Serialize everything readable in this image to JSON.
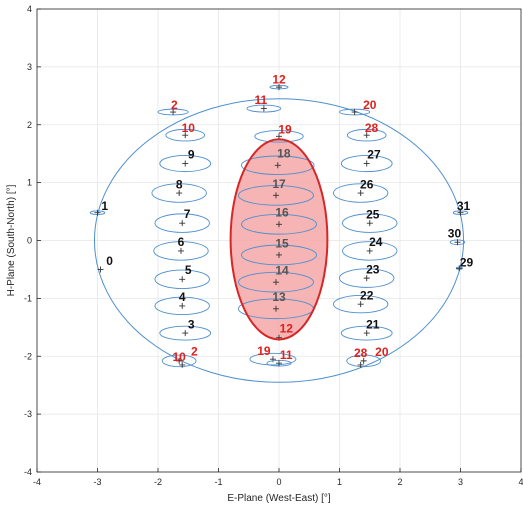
{
  "chart_data": {
    "type": "scatter",
    "xlabel": "E-Plane (West-East) [°]",
    "ylabel": "H-Plane (South-North) [°]",
    "xlim": [
      -4,
      4
    ],
    "ylim": [
      -4,
      4
    ],
    "xticks": [
      "-4",
      "-3",
      "-2",
      "-1",
      "0",
      "1",
      "2",
      "3",
      "4"
    ],
    "yticks": [
      "-4",
      "-3",
      "-2",
      "-1",
      "0",
      "1",
      "2",
      "3",
      "4"
    ],
    "grid": true,
    "colors": {
      "outline": "#4d8fcf",
      "highlight_fill": "#f4a7a7",
      "highlight_stroke": "#d62728",
      "label_black": "#111111",
      "label_red": "#e0201c",
      "label_gray": "#555555",
      "axis": "#262626",
      "grid": "#e6e6e6"
    },
    "coverage_ellipse": {
      "cx": 0,
      "cy": 0,
      "rx": 3.05,
      "ry": 2.45
    },
    "highlight_ellipse": {
      "cx": 0,
      "cy": 0.02,
      "rx": 0.8,
      "ry": 1.73
    },
    "beams": [
      {
        "id": "0",
        "x": -2.95,
        "y": -0.5,
        "rx": 0,
        "ry": 0,
        "color": "black",
        "lx": 0.15,
        "ly": 0.15
      },
      {
        "id": "1",
        "x": -3.0,
        "y": 0.48,
        "rx": 0.12,
        "ry": 0.03,
        "color": "black",
        "lx": 0.12,
        "ly": 0.12
      },
      {
        "id": "2",
        "x": -1.75,
        "y": 2.22,
        "rx": 0.25,
        "ry": 0.05,
        "color": "red",
        "lx": 0.02,
        "ly": 0.12
      },
      {
        "id": "3",
        "x": -1.55,
        "y": -1.6,
        "rx": 0.42,
        "ry": 0.12,
        "color": "black",
        "lx": 0.1,
        "ly": 0.15
      },
      {
        "id": "4",
        "x": -1.6,
        "y": -1.13,
        "rx": 0.45,
        "ry": 0.15,
        "color": "black",
        "lx": 0.0,
        "ly": 0.15
      },
      {
        "id": "5",
        "x": -1.6,
        "y": -0.67,
        "rx": 0.45,
        "ry": 0.16,
        "color": "black",
        "lx": 0.1,
        "ly": 0.16
      },
      {
        "id": "6",
        "x": -1.62,
        "y": -0.18,
        "rx": 0.45,
        "ry": 0.16,
        "color": "black",
        "lx": 0.0,
        "ly": 0.15
      },
      {
        "id": "7",
        "x": -1.6,
        "y": 0.3,
        "rx": 0.45,
        "ry": 0.16,
        "color": "black",
        "lx": 0.08,
        "ly": 0.16
      },
      {
        "id": "8",
        "x": -1.65,
        "y": 0.82,
        "rx": 0.45,
        "ry": 0.16,
        "color": "black",
        "lx": 0.0,
        "ly": 0.15
      },
      {
        "id": "9",
        "x": -1.55,
        "y": 1.33,
        "rx": 0.42,
        "ry": 0.14,
        "color": "black",
        "lx": 0.1,
        "ly": 0.16
      },
      {
        "id": "10",
        "x": -1.55,
        "y": 1.82,
        "rx": 0.32,
        "ry": 0.1,
        "color": "red",
        "lx": 0.05,
        "ly": 0.12
      },
      {
        "id": "11",
        "x": -0.25,
        "y": 2.28,
        "rx": 0.28,
        "ry": 0.06,
        "color": "red",
        "lx": -0.05,
        "ly": 0.15
      },
      {
        "id": "12",
        "x": 0.0,
        "y": 2.65,
        "rx": 0.15,
        "ry": 0.03,
        "color": "red",
        "lx": 0.0,
        "ly": 0.13
      },
      {
        "id": "13",
        "x": -0.05,
        "y": -1.18,
        "rx": 0.62,
        "ry": 0.17,
        "color": "gray",
        "lx": 0.05,
        "ly": 0.2
      },
      {
        "id": "14",
        "x": -0.05,
        "y": -0.72,
        "rx": 0.62,
        "ry": 0.17,
        "color": "gray",
        "lx": 0.1,
        "ly": 0.2
      },
      {
        "id": "15",
        "x": 0.0,
        "y": -0.25,
        "rx": 0.62,
        "ry": 0.17,
        "color": "gray",
        "lx": 0.05,
        "ly": 0.2
      },
      {
        "id": "16",
        "x": 0.0,
        "y": 0.28,
        "rx": 0.62,
        "ry": 0.17,
        "color": "gray",
        "lx": 0.05,
        "ly": 0.2
      },
      {
        "id": "17",
        "x": -0.05,
        "y": 0.78,
        "rx": 0.62,
        "ry": 0.17,
        "color": "gray",
        "lx": 0.05,
        "ly": 0.2
      },
      {
        "id": "18",
        "x": -0.02,
        "y": 1.3,
        "rx": 0.6,
        "ry": 0.16,
        "color": "gray",
        "lx": 0.1,
        "ly": 0.2
      },
      {
        "id": "19",
        "x": 0.0,
        "y": 1.8,
        "rx": 0.4,
        "ry": 0.1,
        "color": "red",
        "lx": 0.1,
        "ly": 0.12
      },
      {
        "id": "20",
        "x": 1.25,
        "y": 2.22,
        "rx": 0.25,
        "ry": 0.05,
        "color": "red",
        "lx": 0.25,
        "ly": 0.12
      },
      {
        "id": "21",
        "x": 1.45,
        "y": -1.6,
        "rx": 0.42,
        "ry": 0.12,
        "color": "black",
        "lx": 0.1,
        "ly": 0.15
      },
      {
        "id": "22",
        "x": 1.35,
        "y": -1.1,
        "rx": 0.45,
        "ry": 0.15,
        "color": "black",
        "lx": 0.1,
        "ly": 0.15
      },
      {
        "id": "23",
        "x": 1.45,
        "y": -0.65,
        "rx": 0.45,
        "ry": 0.16,
        "color": "black",
        "lx": 0.1,
        "ly": 0.15
      },
      {
        "id": "24",
        "x": 1.5,
        "y": -0.18,
        "rx": 0.45,
        "ry": 0.16,
        "color": "black",
        "lx": 0.1,
        "ly": 0.15
      },
      {
        "id": "25",
        "x": 1.5,
        "y": 0.3,
        "rx": 0.45,
        "ry": 0.16,
        "color": "black",
        "lx": 0.05,
        "ly": 0.15
      },
      {
        "id": "26",
        "x": 1.35,
        "y": 0.82,
        "rx": 0.45,
        "ry": 0.16,
        "color": "black",
        "lx": 0.1,
        "ly": 0.15
      },
      {
        "id": "27",
        "x": 1.45,
        "y": 1.33,
        "rx": 0.42,
        "ry": 0.14,
        "color": "black",
        "lx": 0.12,
        "ly": 0.16
      },
      {
        "id": "28",
        "x": 1.45,
        "y": 1.82,
        "rx": 0.32,
        "ry": 0.1,
        "color": "red",
        "lx": 0.08,
        "ly": 0.12
      },
      {
        "id": "29",
        "x": 2.98,
        "y": -0.48,
        "rx": 0.05,
        "ry": 0.02,
        "color": "black",
        "lx": 0.12,
        "ly": 0.1
      },
      {
        "id": "30",
        "x": 2.95,
        "y": -0.03,
        "rx": 0.12,
        "ry": 0.04,
        "color": "black",
        "lx": -0.05,
        "ly": 0.15
      },
      {
        "id": "31",
        "x": 3.0,
        "y": 0.48,
        "rx": 0.12,
        "ry": 0.03,
        "color": "black",
        "lx": 0.05,
        "ly": 0.12
      },
      {
        "id": "2",
        "x": -1.65,
        "y": -2.08,
        "rx": 0.28,
        "ry": 0.1,
        "color": "red",
        "lx": 0.25,
        "ly": 0.16
      },
      {
        "id": "10",
        "x": -1.6,
        "y": -2.15,
        "rx": 0,
        "ry": 0,
        "color": "red",
        "lx": -0.05,
        "ly": 0.14
      },
      {
        "id": "19",
        "x": -0.1,
        "y": -2.05,
        "rx": 0.38,
        "ry": 0.1,
        "color": "red",
        "lx": -0.15,
        "ly": 0.14
      },
      {
        "id": "11",
        "x": 0.0,
        "y": -2.12,
        "rx": 0.2,
        "ry": 0.05,
        "color": "red",
        "lx": 0.12,
        "ly": 0.14
      },
      {
        "id": "28",
        "x": 1.4,
        "y": -2.08,
        "rx": 0.28,
        "ry": 0.1,
        "color": "red",
        "lx": -0.05,
        "ly": 0.14
      },
      {
        "id": "20",
        "x": 1.35,
        "y": -2.15,
        "rx": 0,
        "ry": 0,
        "color": "red",
        "lx": 0.35,
        "ly": 0.22
      },
      {
        "id": "12",
        "x": 0.0,
        "y": -1.68,
        "rx": 0,
        "ry": 0,
        "color": "red",
        "lx": 0.12,
        "ly": 0.16
      }
    ]
  }
}
